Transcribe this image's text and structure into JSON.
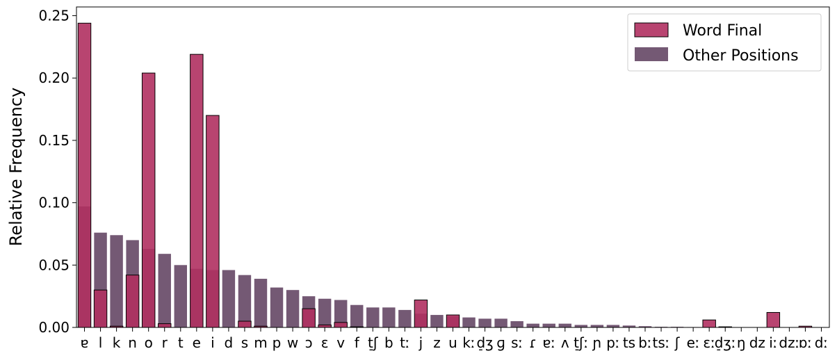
{
  "chart_data": {
    "type": "bar",
    "title": "",
    "xlabel": "",
    "ylabel": "Relative Frequency",
    "ylim": [
      0,
      0.257
    ],
    "yticks": [
      "0.00",
      "0.05",
      "0.10",
      "0.15",
      "0.20",
      "0.25"
    ],
    "grid": false,
    "legend_position": "top-right",
    "categories": [
      "ɐ",
      "l",
      "k",
      "n",
      "o",
      "r",
      "t",
      "e",
      "i",
      "d",
      "s",
      "m",
      "p",
      "w",
      "ɔ",
      "ɛ",
      "v",
      "f",
      "t̠ʃ",
      "b",
      "tː",
      "j",
      "z",
      "u",
      "kː",
      "d̠ʒ",
      "ɡ",
      "sː",
      "ɾ",
      "ɐː",
      "ʌ",
      "t̠ʃː",
      "ɲ",
      "pː",
      "ts",
      "bː",
      "tsː",
      "ʃ",
      "eː",
      "ɛː",
      "d̠ʒː",
      "ŋ",
      "dz",
      "iː",
      "dzː",
      "ɒː",
      "dː"
    ],
    "series": [
      {
        "name": "Word Final",
        "color": "#b03060",
        "values": [
          0.244,
          0.03,
          0.001,
          0.042,
          0.204,
          0.003,
          0.0,
          0.219,
          0.17,
          0.0,
          0.005,
          0.001,
          0.0,
          0.0,
          0.015,
          0.002,
          0.004,
          0.0005,
          0.0,
          0.0,
          0.0,
          0.022,
          0.0,
          0.01,
          0.0,
          0.0,
          0.0,
          0.0,
          0.0,
          0.0,
          0.0,
          0.0,
          0.0,
          0.0,
          0.0,
          0.0,
          0.0,
          0.0,
          0.0,
          0.006,
          0.0005,
          0.0,
          0.0,
          0.012,
          0.0,
          0.001,
          0.0
        ]
      },
      {
        "name": "Other Positions",
        "color": "#5c3c5c",
        "values": [
          0.097,
          0.076,
          0.074,
          0.07,
          0.063,
          0.059,
          0.05,
          0.047,
          0.046,
          0.046,
          0.042,
          0.039,
          0.032,
          0.03,
          0.025,
          0.023,
          0.022,
          0.018,
          0.016,
          0.016,
          0.014,
          0.011,
          0.01,
          0.009,
          0.008,
          0.007,
          0.007,
          0.005,
          0.003,
          0.003,
          0.003,
          0.002,
          0.002,
          0.002,
          0.0015,
          0.001,
          0.0005,
          0.0005,
          0.0003,
          0.0005,
          0.0003,
          0.0002,
          0.0001,
          0.0001,
          0.0001,
          0.0001,
          0.0001
        ]
      }
    ]
  }
}
